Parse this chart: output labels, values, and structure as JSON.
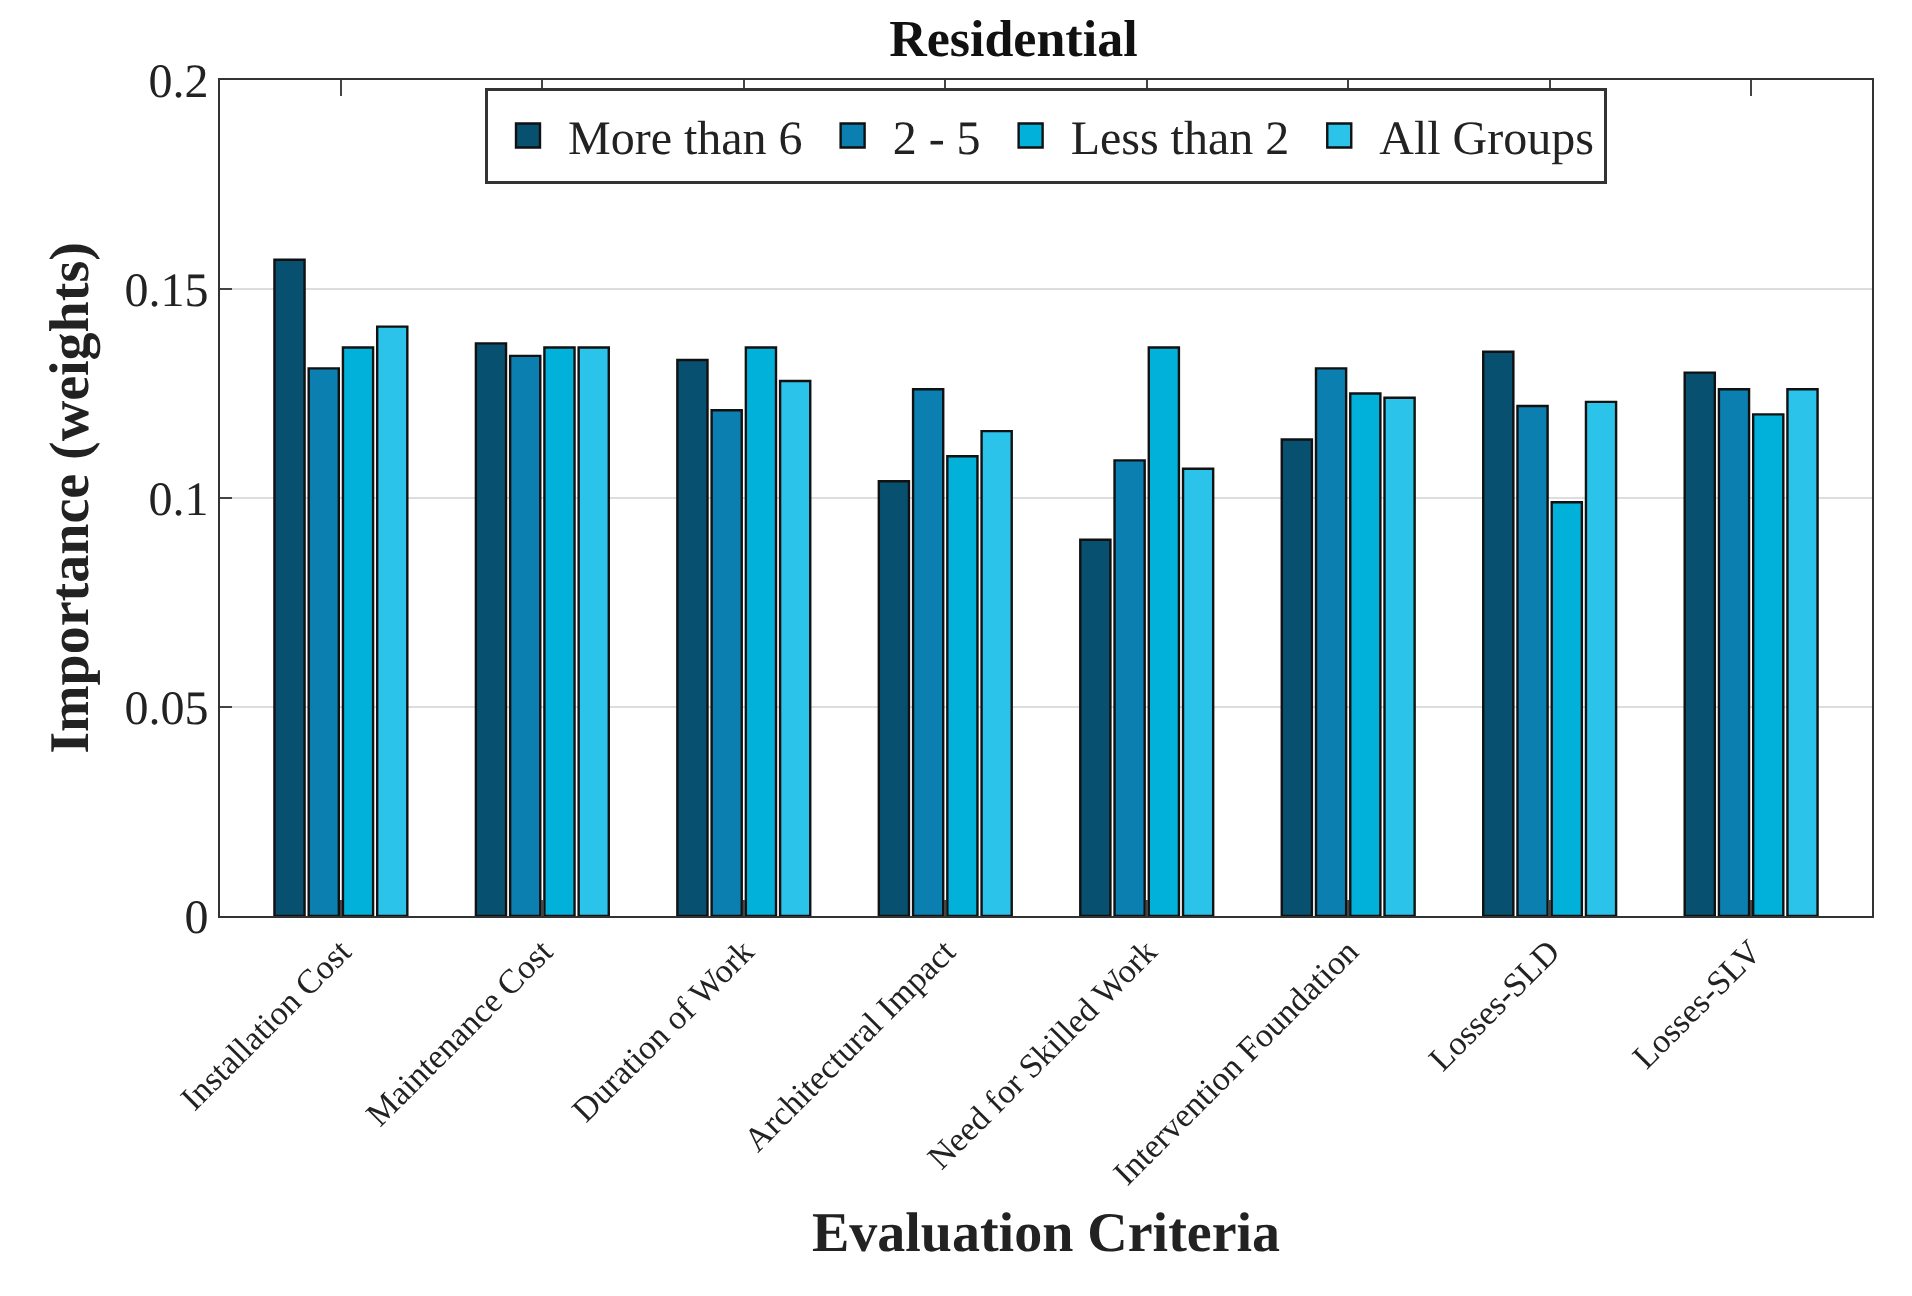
{
  "chart_data": {
    "type": "bar",
    "title": "Residential",
    "xlabel": "Evaluation Criteria",
    "ylabel": "Importance (weights)",
    "categories": [
      "Installation Cost",
      "Maintenance Cost",
      "Duration of Work",
      "Architectural Impact",
      "Need for Skilled Work",
      "Intervention Foundation",
      "Losses-SLD",
      "Losses-SLV"
    ],
    "series": [
      {
        "name": "More than 6",
        "color": "#08506f",
        "values": [
          0.157,
          0.137,
          0.133,
          0.104,
          0.09,
          0.114,
          0.135,
          0.13
        ]
      },
      {
        "name": "2 - 5",
        "color": "#0a7fb0",
        "values": [
          0.131,
          0.134,
          0.121,
          0.126,
          0.109,
          0.131,
          0.122,
          0.126
        ]
      },
      {
        "name": "Less than 2",
        "color": "#02b1d9",
        "values": [
          0.136,
          0.136,
          0.136,
          0.11,
          0.136,
          0.125,
          0.099,
          0.12
        ]
      },
      {
        "name": "All Groups",
        "color": "#2cc3ea",
        "values": [
          0.141,
          0.136,
          0.128,
          0.116,
          0.107,
          0.124,
          0.123,
          0.126
        ]
      }
    ],
    "ylim": [
      0,
      0.2
    ],
    "yticks": [
      0,
      0.05,
      0.1,
      0.15,
      0.2
    ],
    "grid": "y",
    "legend": "top"
  }
}
